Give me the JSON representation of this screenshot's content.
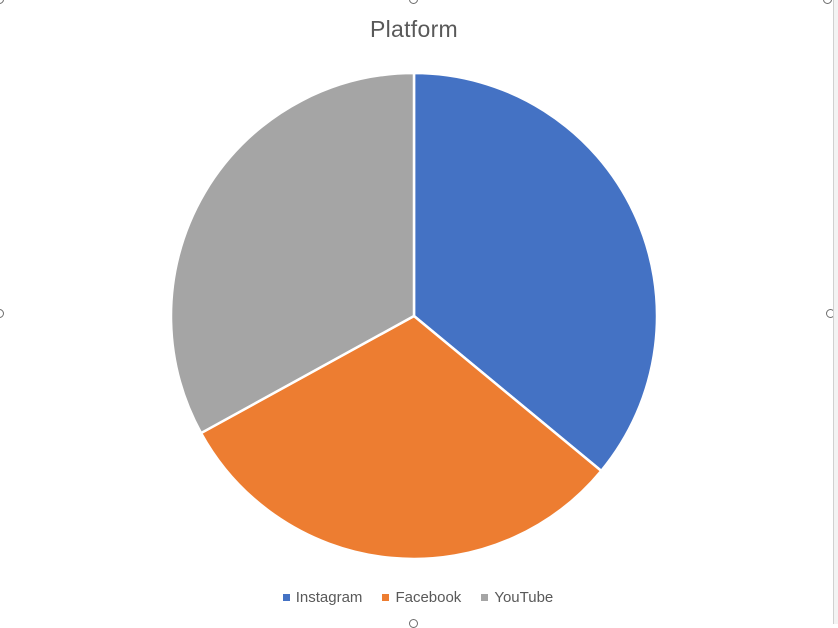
{
  "chart_data": {
    "type": "pie",
    "title": "Platform",
    "categories": [
      "Instagram",
      "Facebook",
      "YouTube"
    ],
    "values": [
      36,
      31,
      33
    ],
    "colors": [
      "#4472c4",
      "#ed7d31",
      "#a5a5a5"
    ],
    "legend_position": "bottom",
    "start_angle": "12 o'clock",
    "direction": "clockwise",
    "data_labels": false
  }
}
